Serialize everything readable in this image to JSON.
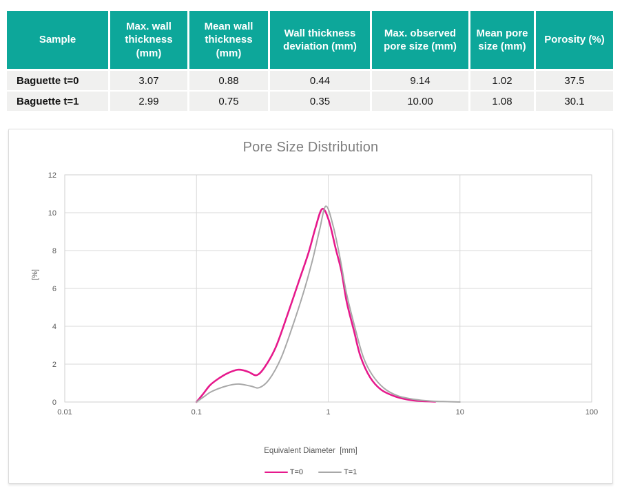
{
  "table": {
    "header_bg": "#0DA79A",
    "header_text_color": "#FFFFFF",
    "row_bg": "#F0F0EF",
    "columns": [
      "Sample",
      "Max. wall thickness (mm)",
      "Mean wall thickness (mm)",
      "Wall thickness deviation (mm)",
      "Max. observed pore size (mm)",
      "Mean pore size (mm)",
      "Porosity (%)"
    ],
    "rows": [
      [
        "Baguette t=0",
        "3.07",
        "0.88",
        "0.44",
        "9.14",
        "1.02",
        "37.5"
      ],
      [
        "Baguette t=1",
        "2.99",
        "0.75",
        "0.35",
        "10.00",
        "1.08",
        "30.1"
      ]
    ]
  },
  "chart_data": {
    "type": "line",
    "title": "Pore Size Distribution",
    "xlabel": "Equivalent Diameter  [mm]",
    "ylabel": "[%]",
    "x_scale": "log",
    "xlim": [
      0.01,
      100
    ],
    "ylim": [
      0,
      12
    ],
    "x_ticks": [
      0.01,
      0.1,
      1,
      10,
      100
    ],
    "x_tick_labels": [
      "0.01",
      "0.1",
      "1",
      "10",
      "100"
    ],
    "y_ticks": [
      0,
      2,
      4,
      6,
      8,
      10,
      12
    ],
    "grid": true,
    "grid_color": "#D9D9D9",
    "legend_position": "bottom",
    "series": [
      {
        "name": "T=0",
        "color": "#E6198C",
        "points": [
          [
            0.1,
            0.0
          ],
          [
            0.113,
            0.45
          ],
          [
            0.126,
            0.87
          ],
          [
            0.141,
            1.15
          ],
          [
            0.16,
            1.4
          ],
          [
            0.18,
            1.58
          ],
          [
            0.204,
            1.7
          ],
          [
            0.225,
            1.68
          ],
          [
            0.25,
            1.58
          ],
          [
            0.287,
            1.42
          ],
          [
            0.33,
            1.85
          ],
          [
            0.4,
            2.9
          ],
          [
            0.49,
            4.6
          ],
          [
            0.6,
            6.4
          ],
          [
            0.71,
            7.9
          ],
          [
            0.8,
            9.2
          ],
          [
            0.9,
            10.2
          ],
          [
            1.01,
            9.6
          ],
          [
            1.14,
            8.1
          ],
          [
            1.26,
            6.9
          ],
          [
            1.38,
            5.3
          ],
          [
            1.57,
            3.75
          ],
          [
            1.76,
            2.4
          ],
          [
            2.08,
            1.3
          ],
          [
            2.52,
            0.65
          ],
          [
            3.2,
            0.3
          ],
          [
            4.0,
            0.13
          ],
          [
            5.0,
            0.05
          ],
          [
            6.5,
            0.02
          ]
        ]
      },
      {
        "name": "T=1",
        "color": "#A8A8A8",
        "points": [
          [
            0.1,
            0.0
          ],
          [
            0.115,
            0.3
          ],
          [
            0.13,
            0.55
          ],
          [
            0.168,
            0.84
          ],
          [
            0.208,
            0.95
          ],
          [
            0.258,
            0.84
          ],
          [
            0.3,
            0.76
          ],
          [
            0.357,
            1.2
          ],
          [
            0.437,
            2.3
          ],
          [
            0.53,
            3.9
          ],
          [
            0.65,
            5.8
          ],
          [
            0.76,
            7.5
          ],
          [
            0.86,
            9.1
          ],
          [
            0.96,
            10.35
          ],
          [
            1.09,
            9.3
          ],
          [
            1.23,
            7.6
          ],
          [
            1.38,
            5.7
          ],
          [
            1.6,
            3.9
          ],
          [
            1.84,
            2.4
          ],
          [
            2.15,
            1.45
          ],
          [
            2.65,
            0.73
          ],
          [
            3.37,
            0.33
          ],
          [
            4.5,
            0.14
          ],
          [
            6.0,
            0.05
          ],
          [
            8.0,
            0.02
          ],
          [
            10.0,
            0.0
          ]
        ]
      }
    ]
  }
}
